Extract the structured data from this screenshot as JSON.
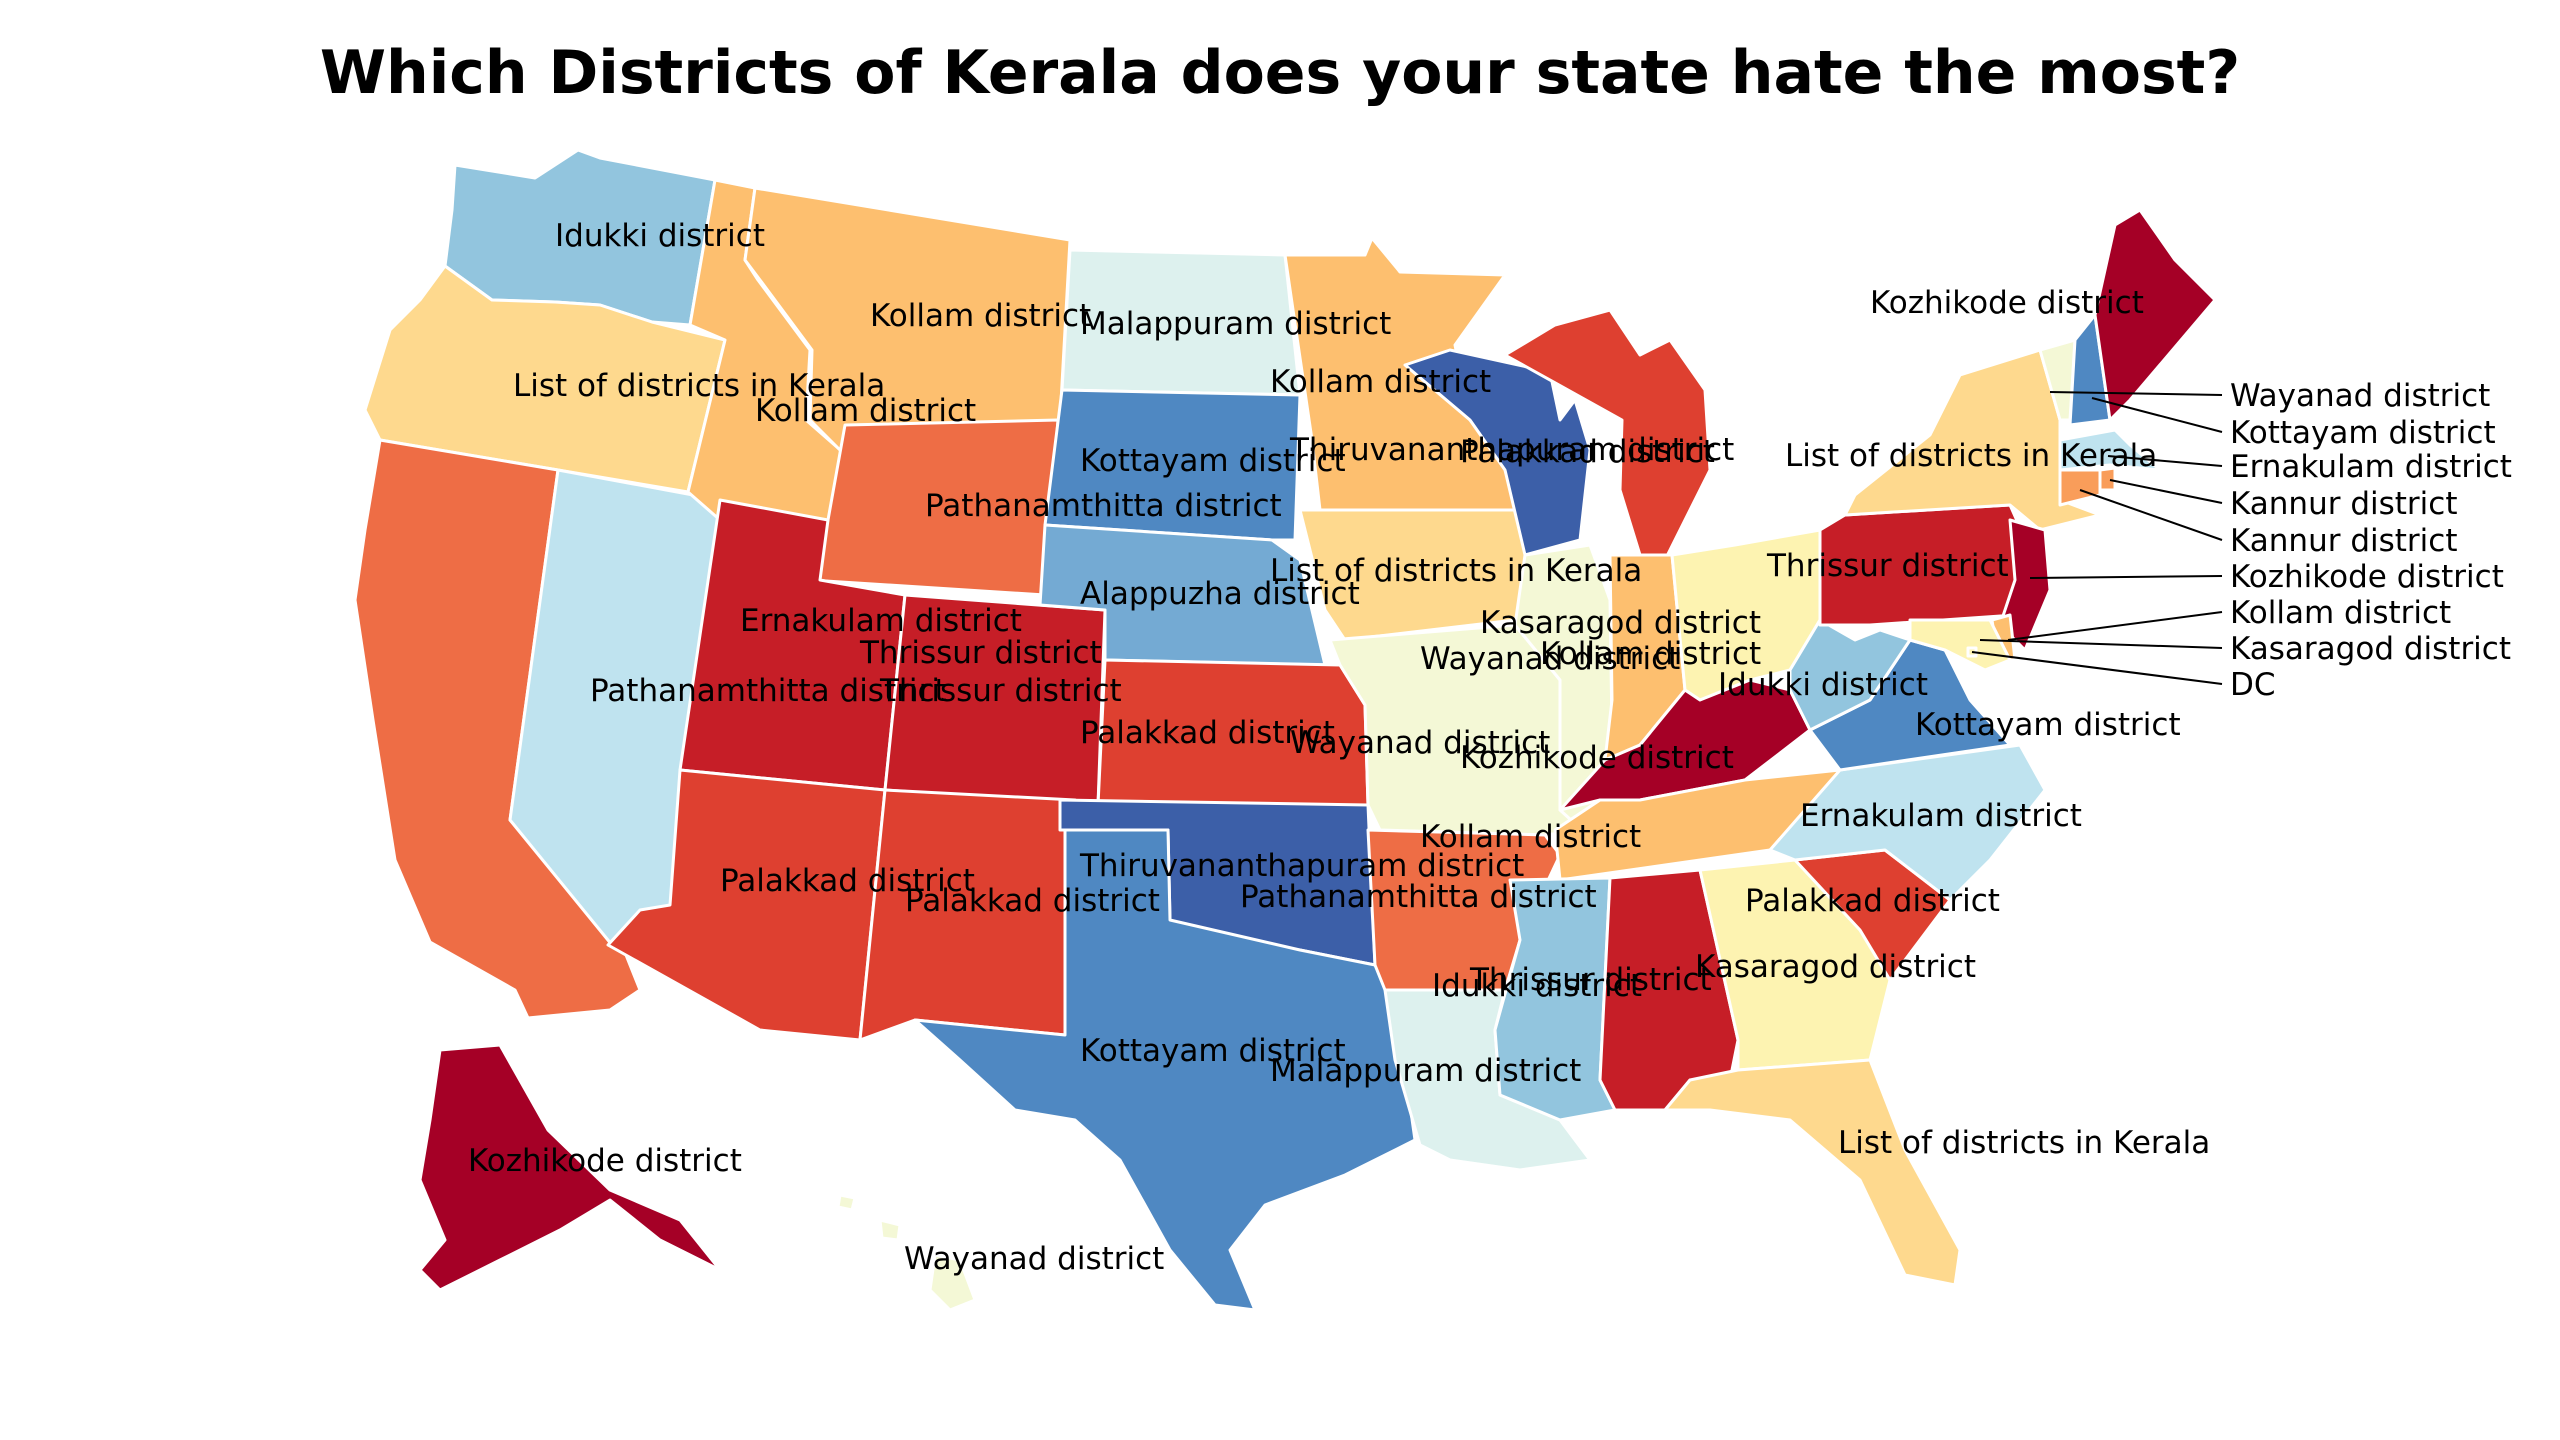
{
  "title": "Which Districts of Kerala does your state hate the most?",
  "colors": {
    "Idukki district": "#92c5de",
    "Kollam district": "#fdbf6f",
    "Malappuram district": "#ddf1ee",
    "Kozhikode district": "#a50026",
    "Wayanad district": "#f4f8d6",
    "Kottayam district": "#4f88c2",
    "Ernakulam district": "#bfe3ef",
    "Kannur district": "#f99d5a",
    "List of districts in Kerala": "#fed98e",
    "Thiruvananthapuram district": "#3c5fa8",
    "Pathanamthitta district": "#ee6d45",
    "Alappuzha district": "#74aad3",
    "Palakkad district": "#de4030",
    "Thrissur district": "#c61e27",
    "Kasaragod district": "#fdf3b1",
    "DC": "#fdf3b1"
  },
  "states": [
    {
      "id": "WA",
      "label": "Idukki district"
    },
    {
      "id": "OR",
      "label": "List of districts in Kerala"
    },
    {
      "id": "CA",
      "label": "Pathanamthitta district"
    },
    {
      "id": "NV",
      "label": "Ernakulam district"
    },
    {
      "id": "ID",
      "label": "Kollam district"
    },
    {
      "id": "MT",
      "label": "Kollam district"
    },
    {
      "id": "WY",
      "label": "Pathanamthitta district"
    },
    {
      "id": "UT",
      "label": "Thrissur district"
    },
    {
      "id": "AZ",
      "label": "Palakkad district"
    },
    {
      "id": "CO",
      "label": "Thrissur district"
    },
    {
      "id": "NM",
      "label": "Palakkad district"
    },
    {
      "id": "ND",
      "label": "Malappuram district"
    },
    {
      "id": "SD",
      "label": "Kottayam district"
    },
    {
      "id": "NE",
      "label": "Alappuzha district"
    },
    {
      "id": "KS",
      "label": "Palakkad district"
    },
    {
      "id": "OK",
      "label": "Thiruvananthapuram district"
    },
    {
      "id": "TX",
      "label": "Kottayam district"
    },
    {
      "id": "MN",
      "label": "Kollam district"
    },
    {
      "id": "IA",
      "label": "List of districts in Kerala"
    },
    {
      "id": "MO",
      "label": "Wayanad district"
    },
    {
      "id": "AR",
      "label": "Pathanamthitta district"
    },
    {
      "id": "LA",
      "label": "Malappuram district"
    },
    {
      "id": "WI",
      "label": "Thiruvananthapuram district"
    },
    {
      "id": "IL",
      "label": "Wayanad district"
    },
    {
      "id": "MI",
      "label": "Palakkad district"
    },
    {
      "id": "IN",
      "label": "Kollam district"
    },
    {
      "id": "OH",
      "label": "Kasaragod district"
    },
    {
      "id": "KY",
      "label": "Kozhikode district"
    },
    {
      "id": "TN",
      "label": "Kollam district"
    },
    {
      "id": "MS",
      "label": "Idukki district"
    },
    {
      "id": "AL",
      "label": "Thrissur district"
    },
    {
      "id": "GA",
      "label": "Kasaragod district"
    },
    {
      "id": "FL",
      "label": "List of districts in Kerala"
    },
    {
      "id": "SC",
      "label": "Palakkad district"
    },
    {
      "id": "NC",
      "label": "Ernakulam district"
    },
    {
      "id": "VA",
      "label": "Kottayam district"
    },
    {
      "id": "WV",
      "label": "Idukki district"
    },
    {
      "id": "PA",
      "label": "Thrissur district"
    },
    {
      "id": "NY",
      "label": "List of districts in Kerala"
    },
    {
      "id": "VT",
      "label": "Wayanad district"
    },
    {
      "id": "NH",
      "label": "Kottayam district"
    },
    {
      "id": "ME",
      "label": "Kozhikode district"
    },
    {
      "id": "MA",
      "label": "Ernakulam district"
    },
    {
      "id": "RI",
      "label": "Kannur district"
    },
    {
      "id": "CT",
      "label": "Kannur district"
    },
    {
      "id": "NJ",
      "label": "Kozhikode district"
    },
    {
      "id": "DE",
      "label": "Kollam district"
    },
    {
      "id": "MD",
      "label": "Kasaragod district"
    },
    {
      "id": "DC",
      "label": "DC"
    },
    {
      "id": "AK",
      "label": "Kozhikode district"
    },
    {
      "id": "HI",
      "label": "Wayanad district"
    }
  ]
}
